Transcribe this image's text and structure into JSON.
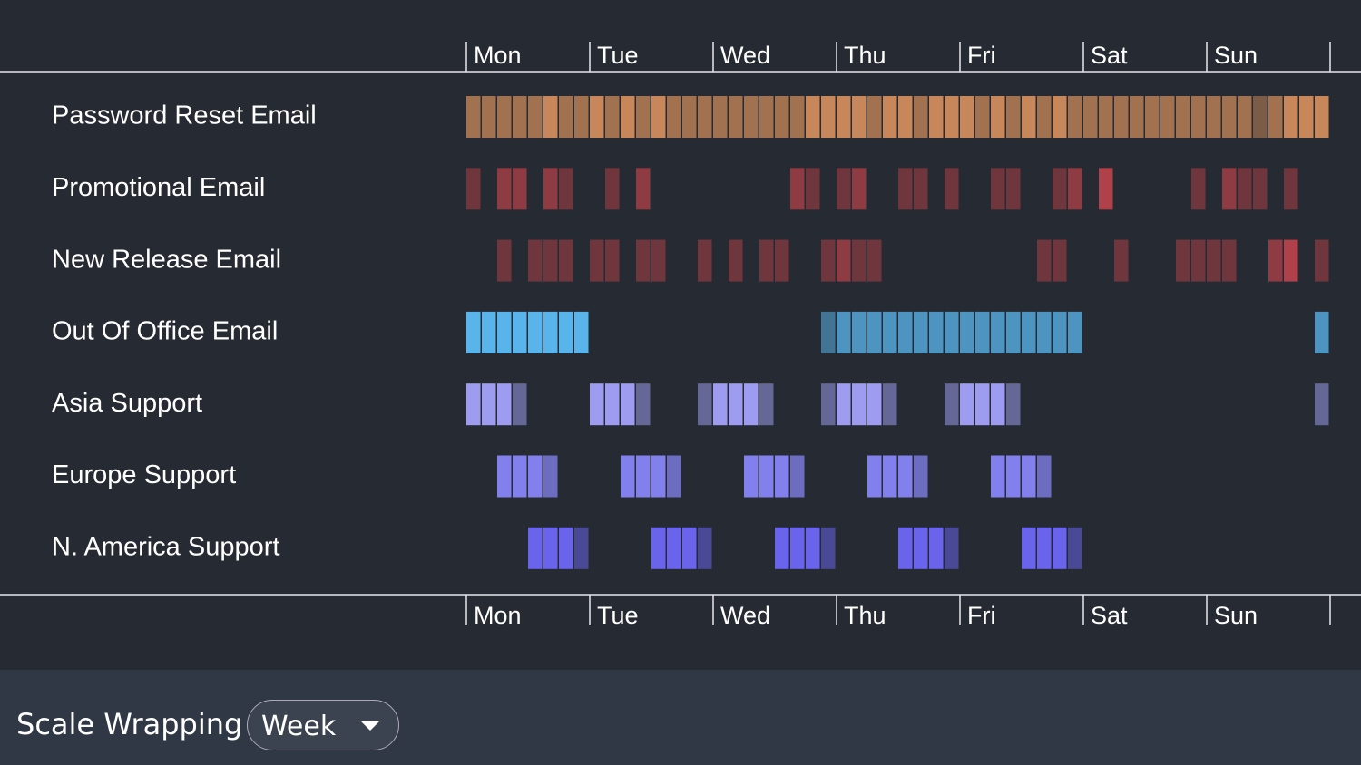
{
  "chart_data": {
    "type": "heatmap",
    "categories": [
      "Mon",
      "Tue",
      "Wed",
      "Thu",
      "Fri",
      "Sat",
      "Sun"
    ],
    "series": [
      {
        "name": "Password Reset Email",
        "color": "#c8875a",
        "values": [
          [
            2,
            2,
            2,
            2,
            2,
            3,
            2,
            2
          ],
          [
            3,
            2,
            3,
            2,
            3,
            2,
            2,
            2
          ],
          [
            2,
            2,
            2,
            2,
            2,
            2,
            3,
            3
          ],
          [
            3,
            3,
            2,
            3,
            3,
            2,
            3,
            3
          ],
          [
            3,
            2,
            3,
            2,
            3,
            2,
            3,
            2
          ],
          [
            2,
            2,
            2,
            2,
            2,
            2,
            2,
            2
          ],
          [
            2,
            2,
            2,
            1,
            2,
            3,
            3,
            3
          ]
        ]
      },
      {
        "name": "Promotional Email",
        "color": "#b0404a",
        "values": [
          [
            1,
            null,
            2,
            2,
            null,
            2,
            1,
            null
          ],
          [
            null,
            1,
            null,
            2,
            null,
            null,
            null,
            null
          ],
          [
            null,
            null,
            null,
            null,
            null,
            2,
            1,
            null
          ],
          [
            1,
            2,
            null,
            null,
            1,
            1,
            null,
            1
          ],
          [
            null,
            null,
            1,
            1,
            null,
            null,
            1,
            2
          ],
          [
            null,
            3,
            null,
            null,
            null,
            null,
            null,
            1
          ],
          [
            null,
            2,
            1,
            1,
            null,
            1,
            null,
            null
          ]
        ]
      },
      {
        "name": "New Release Email",
        "color": "#b0404a",
        "values": [
          [
            null,
            null,
            1,
            null,
            1,
            1,
            1,
            null
          ],
          [
            1,
            1,
            null,
            1,
            1,
            null,
            null,
            1
          ],
          [
            null,
            1,
            null,
            1,
            1,
            null,
            null,
            1
          ],
          [
            2,
            1,
            1,
            null,
            null,
            null,
            null,
            null
          ],
          [
            null,
            null,
            null,
            null,
            null,
            1,
            1,
            null
          ],
          [
            null,
            null,
            1,
            null,
            null,
            null,
            1,
            1
          ],
          [
            1,
            1,
            null,
            null,
            2,
            3,
            null,
            1
          ]
        ]
      },
      {
        "name": "Out Of Office Email",
        "color": "#5ab4ec",
        "values": [
          [
            3,
            3,
            3,
            3,
            3,
            3,
            3,
            3
          ],
          [
            null,
            null,
            null,
            null,
            null,
            null,
            null,
            null
          ],
          [
            null,
            null,
            null,
            null,
            null,
            null,
            null,
            1
          ],
          [
            2,
            2,
            2,
            2,
            2,
            2,
            2,
            2
          ],
          [
            2,
            2,
            2,
            2,
            2,
            2,
            2,
            2
          ],
          [
            null,
            null,
            null,
            null,
            null,
            null,
            null,
            null
          ],
          [
            null,
            null,
            null,
            null,
            null,
            null,
            null,
            2
          ]
        ]
      },
      {
        "name": "Asia Support",
        "color": "#9e9cf0",
        "values": [
          [
            3,
            3,
            3,
            1,
            null,
            null,
            null,
            null
          ],
          [
            3,
            3,
            3,
            1,
            null,
            null,
            null,
            1
          ],
          [
            3,
            3,
            3,
            1,
            null,
            null,
            null,
            1
          ],
          [
            3,
            3,
            3,
            1,
            null,
            null,
            null,
            1
          ],
          [
            3,
            3,
            3,
            1,
            null,
            null,
            null,
            null
          ],
          [
            null,
            null,
            null,
            null,
            null,
            null,
            null,
            null
          ],
          [
            null,
            null,
            null,
            null,
            null,
            null,
            null,
            1
          ]
        ]
      },
      {
        "name": "Europe Support",
        "color": "#8280ec",
        "values": [
          [
            null,
            null,
            3,
            3,
            3,
            2,
            null,
            null
          ],
          [
            null,
            null,
            3,
            3,
            3,
            2,
            null,
            null
          ],
          [
            null,
            null,
            3,
            3,
            3,
            2,
            null,
            null
          ],
          [
            null,
            null,
            3,
            3,
            3,
            2,
            null,
            null
          ],
          [
            null,
            null,
            3,
            3,
            3,
            2,
            null,
            null
          ],
          [
            null,
            null,
            null,
            null,
            null,
            null,
            null,
            null
          ],
          [
            null,
            null,
            null,
            null,
            null,
            null,
            null,
            null
          ]
        ]
      },
      {
        "name": "N. America Support",
        "color": "#6a64ec",
        "values": [
          [
            null,
            null,
            null,
            null,
            3,
            3,
            3,
            1
          ],
          [
            null,
            null,
            null,
            null,
            3,
            3,
            3,
            1
          ],
          [
            null,
            null,
            null,
            null,
            3,
            3,
            3,
            1
          ],
          [
            null,
            null,
            null,
            null,
            3,
            3,
            3,
            1
          ],
          [
            null,
            null,
            null,
            null,
            3,
            3,
            3,
            1
          ],
          [
            null,
            null,
            null,
            null,
            null,
            null,
            null,
            null
          ],
          [
            null,
            null,
            null,
            null,
            null,
            null,
            null,
            null
          ]
        ]
      }
    ]
  },
  "controls": {
    "label": "Scale Wrapping",
    "value": "Week"
  }
}
